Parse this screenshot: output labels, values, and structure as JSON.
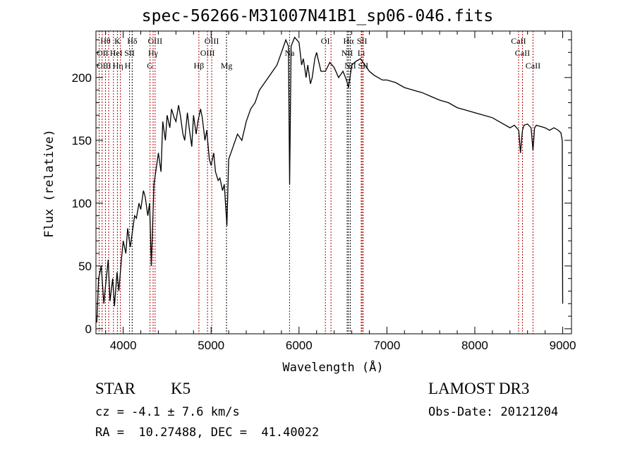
{
  "chart_data": {
    "type": "line",
    "title": "spec-56266-M31007N41B1_sp06-046.fits",
    "xlabel": "Wavelength (Å)",
    "ylabel": "Flux (relative)",
    "xlim": [
      3690,
      9100
    ],
    "ylim": [
      -4,
      237
    ],
    "xticks": [
      4000,
      5000,
      6000,
      7000,
      8000,
      9000
    ],
    "yticks": [
      0,
      50,
      100,
      150,
      200
    ],
    "grid": false,
    "series": [
      {
        "name": "spectrum",
        "x": [
          3700,
          3720,
          3750,
          3780,
          3800,
          3830,
          3850,
          3880,
          3900,
          3930,
          3950,
          3980,
          4000,
          4030,
          4050,
          4080,
          4100,
          4130,
          4150,
          4180,
          4200,
          4230,
          4250,
          4280,
          4300,
          4320,
          4350,
          4380,
          4400,
          4430,
          4450,
          4480,
          4500,
          4530,
          4550,
          4580,
          4600,
          4630,
          4650,
          4680,
          4700,
          4730,
          4750,
          4780,
          4800,
          4830,
          4850,
          4880,
          4900,
          4930,
          4950,
          4980,
          5000,
          5030,
          5050,
          5080,
          5100,
          5130,
          5150,
          5180,
          5200,
          5250,
          5300,
          5350,
          5400,
          5450,
          5500,
          5550,
          5600,
          5650,
          5700,
          5750,
          5800,
          5850,
          5880,
          5893,
          5910,
          5950,
          6000,
          6030,
          6050,
          6080,
          6100,
          6130,
          6150,
          6180,
          6200,
          6250,
          6300,
          6350,
          6400,
          6450,
          6500,
          6540,
          6563,
          6590,
          6600,
          6650,
          6700,
          6750,
          6800,
          6850,
          6900,
          6950,
          7000,
          7100,
          7200,
          7300,
          7400,
          7500,
          7600,
          7700,
          7800,
          7900,
          8000,
          8100,
          8200,
          8300,
          8400,
          8450,
          8500,
          8520,
          8542,
          8560,
          8600,
          8640,
          8662,
          8680,
          8700,
          8750,
          8800,
          8850,
          8900,
          8950,
          8980,
          8995,
          9000
        ],
        "y": [
          5,
          40,
          50,
          20,
          35,
          55,
          22,
          40,
          18,
          45,
          30,
          55,
          70,
          60,
          80,
          65,
          75,
          90,
          88,
          100,
          95,
          110,
          105,
          90,
          100,
          50,
          115,
          130,
          140,
          125,
          165,
          150,
          170,
          160,
          175,
          168,
          165,
          178,
          170,
          155,
          150,
          172,
          160,
          145,
          170,
          155,
          165,
          175,
          168,
          150,
          158,
          135,
          130,
          140,
          125,
          118,
          120,
          110,
          115,
          82,
          135,
          145,
          155,
          150,
          165,
          175,
          180,
          190,
          195,
          200,
          205,
          210,
          220,
          230,
          225,
          115,
          225,
          232,
          228,
          210,
          215,
          200,
          210,
          195,
          200,
          215,
          220,
          205,
          205,
          212,
          208,
          200,
          205,
          198,
          192,
          205,
          210,
          213,
          215,
          210,
          205,
          202,
          200,
          198,
          198,
          196,
          192,
          190,
          188,
          185,
          182,
          180,
          176,
          174,
          172,
          170,
          168,
          164,
          160,
          162,
          158,
          140,
          158,
          162,
          163,
          160,
          142,
          160,
          162,
          161,
          160,
          158,
          160,
          158,
          156,
          150,
          20
        ]
      }
    ],
    "line_markers": [
      {
        "label": "Hθ",
        "wl": 3798,
        "row": 0,
        "color": "#b00000"
      },
      {
        "label": "K",
        "wl": 3934,
        "row": 0,
        "color": "#b00000"
      },
      {
        "label": "Hδ",
        "wl": 4102,
        "row": 0,
        "color": "#000000"
      },
      {
        "label": "OIII",
        "wl": 4363,
        "row": 0,
        "color": "#b00000"
      },
      {
        "label": "OIII",
        "wl": 5007,
        "row": 0,
        "color": "#b00000"
      },
      {
        "label": "OII",
        "wl": 3727,
        "row": 1,
        "color": "#b00000"
      },
      {
        "label": "HeI",
        "wl": 3889,
        "row": 1,
        "color": "#b00000"
      },
      {
        "label": "SII",
        "wl": 4072,
        "row": 1,
        "color": "#b00000"
      },
      {
        "label": "Hγ",
        "wl": 4340,
        "row": 1,
        "color": "#b00000"
      },
      {
        "label": "OIII",
        "wl": 4959,
        "row": 1,
        "color": "#b00000"
      },
      {
        "label": "OIII",
        "wl": 3760,
        "row": 2,
        "color": "#b00000"
      },
      {
        "label": "Hη",
        "wl": 3835,
        "row": 2,
        "color": "#b00000"
      },
      {
        "label": "H",
        "wl": 3968,
        "row": 2,
        "color": "#b00000"
      },
      {
        "label": "G",
        "wl": 4305,
        "row": 2,
        "color": "#b00000"
      },
      {
        "label": "Hβ",
        "wl": 4861,
        "row": 2,
        "color": "#b00000"
      },
      {
        "label": "Mg",
        "wl": 5175,
        "row": 2,
        "color": "#000000"
      },
      {
        "label": "Na",
        "wl": 5893,
        "row": 1,
        "color": "#b00000"
      },
      {
        "label": "OI",
        "wl": 6300,
        "row": 0,
        "color": "#b00000"
      },
      {
        "label": "OI",
        "wl": 6364,
        "row": -1,
        "color": "#b00000"
      },
      {
        "label": "Hα",
        "wl": 6563,
        "row": 0,
        "color": "#000000"
      },
      {
        "label": "SII",
        "wl": 6717,
        "row": 0,
        "color": "#b00000"
      },
      {
        "label": "NII",
        "wl": 6548,
        "row": 1,
        "color": "#000000"
      },
      {
        "label": "Li",
        "wl": 6708,
        "row": 1,
        "color": "#b00000"
      },
      {
        "label": "NII",
        "wl": 6583,
        "row": 2,
        "color": "#000000"
      },
      {
        "label": "SII",
        "wl": 6731,
        "row": 2,
        "color": "#b00000"
      },
      {
        "label": "CaII",
        "wl": 8498,
        "row": 0,
        "color": "#b00000"
      },
      {
        "label": "CaII",
        "wl": 8542,
        "row": 1,
        "color": "#b00000"
      },
      {
        "label": "CaII",
        "wl": 8662,
        "row": 2,
        "color": "#b00000"
      }
    ]
  },
  "info": {
    "class": "STAR",
    "subclass": "K5",
    "cz": "cz = -4.1 ± 7.6 km/s",
    "coords": "RA =  10.27488, DEC =  41.40022",
    "survey": "LAMOST DR3",
    "obs_date": "Obs-Date: 20121204"
  }
}
